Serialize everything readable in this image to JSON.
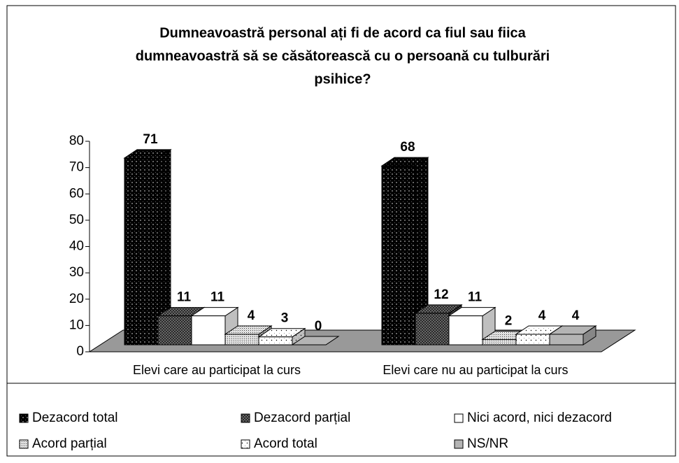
{
  "chart_data": {
    "type": "bar3d",
    "title": [
      "Dumneavoastră personal ați fi de acord ca fiul sau fiica",
      "dumneavoastră să se căsătorească cu o persoană cu tulburări",
      "psihice?"
    ],
    "categories": [
      "Elevi care au participat la curs",
      "Elevi care nu au participat la curs"
    ],
    "series": [
      {
        "name": "Dezacord total",
        "color": "#000000",
        "values": [
          71,
          68
        ]
      },
      {
        "name": "Dezacord parțial",
        "color": "#808080",
        "values": [
          11,
          12
        ]
      },
      {
        "name": "Nici acord, nici dezacord",
        "color": "#ffffff",
        "values": [
          11,
          11
        ]
      },
      {
        "name": "Acord parțial",
        "color": "#e6e6e6",
        "values": [
          4,
          2
        ]
      },
      {
        "name": "Acord total",
        "color": "#ffffff",
        "values": [
          3,
          4
        ]
      },
      {
        "name": "NS/NR",
        "color": "#b4b4b4",
        "values": [
          0,
          4
        ]
      }
    ],
    "ylim": [
      0,
      80
    ],
    "yticks": [
      0,
      10,
      20,
      30,
      40,
      50,
      60,
      70,
      80
    ],
    "legend": "bottom"
  }
}
